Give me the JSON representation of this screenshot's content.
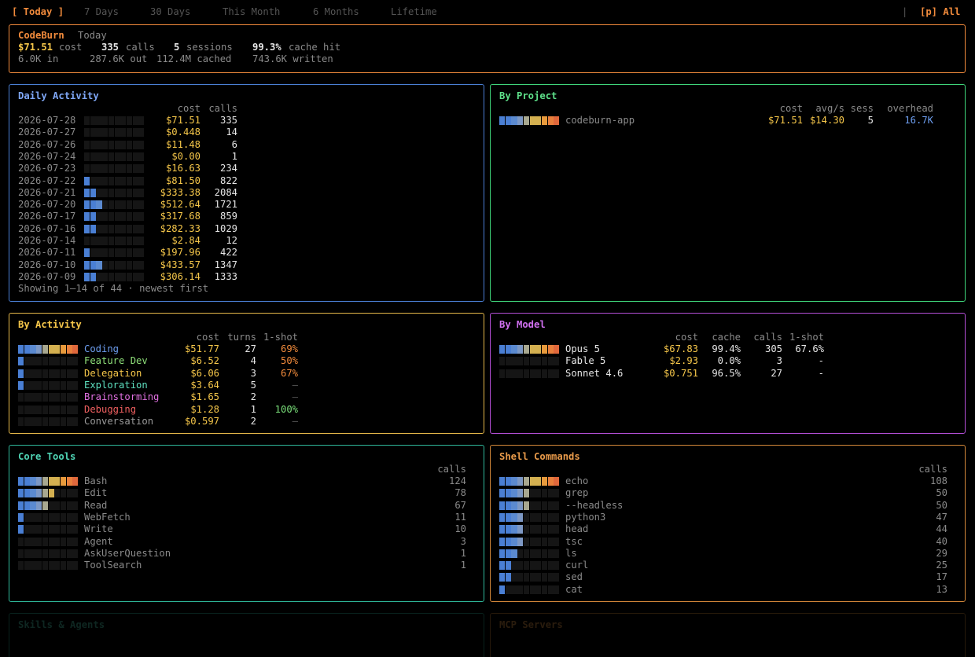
{
  "tabs": [
    {
      "label": "[ Today ]",
      "active": true
    },
    {
      "label": "7 Days"
    },
    {
      "label": "30 Days"
    },
    {
      "label": "This Month"
    },
    {
      "label": "6 Months"
    },
    {
      "label": "Lifetime"
    }
  ],
  "tabs_sep": "|",
  "all_label": "[p] All",
  "summary": {
    "app": "CodeBurn",
    "period": "Today",
    "cost": "$71.51",
    "cost_label": "cost",
    "calls": "335",
    "calls_label": "calls",
    "sessions": "5",
    "sessions_label": "sessions",
    "cache_hit": "99.3%",
    "cache_hit_label": "cache hit",
    "tokens_in": "6.0K in",
    "tokens_out": "287.6K out",
    "tokens_cached": "112.4M cached",
    "tokens_written": "743.6K written"
  },
  "daily": {
    "title": "Daily Activity",
    "headers": {
      "cost": "cost",
      "calls": "calls"
    },
    "rows": [
      {
        "date": "2026-07-28",
        "cost": "$71.51",
        "calls": "335",
        "level": 0.0
      },
      {
        "date": "2026-07-27",
        "cost": "$0.448",
        "calls": "14",
        "level": 0.0
      },
      {
        "date": "2026-07-26",
        "cost": "$11.48",
        "calls": "6",
        "level": 0.0
      },
      {
        "date": "2026-07-24",
        "cost": "$0.00",
        "calls": "1",
        "level": 0.0
      },
      {
        "date": "2026-07-23",
        "cost": "$16.63",
        "calls": "234",
        "level": 0.0
      },
      {
        "date": "2026-07-22",
        "cost": "$81.50",
        "calls": "822",
        "level": 0.1
      },
      {
        "date": "2026-07-21",
        "cost": "$333.38",
        "calls": "2084",
        "level": 0.2
      },
      {
        "date": "2026-07-20",
        "cost": "$512.64",
        "calls": "1721",
        "level": 0.3
      },
      {
        "date": "2026-07-17",
        "cost": "$317.68",
        "calls": "859",
        "level": 0.2
      },
      {
        "date": "2026-07-16",
        "cost": "$282.33",
        "calls": "1029",
        "level": 0.2
      },
      {
        "date": "2026-07-14",
        "cost": "$2.84",
        "calls": "12",
        "level": 0.0
      },
      {
        "date": "2026-07-11",
        "cost": "$197.96",
        "calls": "422",
        "level": 0.1
      },
      {
        "date": "2026-07-10",
        "cost": "$433.57",
        "calls": "1347",
        "level": 0.3
      },
      {
        "date": "2026-07-09",
        "cost": "$306.14",
        "calls": "1333",
        "level": 0.2
      }
    ],
    "footer": "Showing 1–14 of 44 · newest first"
  },
  "project": {
    "title": "By Project",
    "headers": {
      "cost": "cost",
      "avg": "avg/s",
      "sess": "sess",
      "overhead": "overhead"
    },
    "rows": [
      {
        "name": "codeburn-app",
        "cost": "$71.51",
        "avg": "$14.30",
        "sess": "5",
        "overhead": "16.7K",
        "level": 1.0
      }
    ]
  },
  "activity": {
    "title": "By Activity",
    "headers": {
      "cost": "cost",
      "turns": "turns",
      "oneshot": "1-shot"
    },
    "rows": [
      {
        "name": "Coding",
        "color": "#6d9ef0",
        "cost": "$51.77",
        "turns": "27",
        "oneshot": "69%",
        "oneshot_color": "#f28b3c",
        "level": 1.0
      },
      {
        "name": "Feature Dev",
        "color": "#8fe07a",
        "cost": "$6.52",
        "turns": "4",
        "oneshot": "50%",
        "oneshot_color": "#f28b3c",
        "level": 0.1
      },
      {
        "name": "Delegation",
        "color": "#f6c74a",
        "cost": "$6.06",
        "turns": "3",
        "oneshot": "67%",
        "oneshot_color": "#f28b3c",
        "level": 0.1
      },
      {
        "name": "Exploration",
        "color": "#5ee0c0",
        "cost": "$3.64",
        "turns": "5",
        "oneshot": "—",
        "oneshot_color": "#555555",
        "level": 0.1
      },
      {
        "name": "Brainstorming",
        "color": "#e070e0",
        "cost": "$1.65",
        "turns": "2",
        "oneshot": "—",
        "oneshot_color": "#555555",
        "level": 0.0
      },
      {
        "name": "Debugging",
        "color": "#f06060",
        "cost": "$1.28",
        "turns": "1",
        "oneshot": "100%",
        "oneshot_color": "#7ae07a",
        "level": 0.0
      },
      {
        "name": "Conversation",
        "color": "#9a9a9a",
        "cost": "$0.597",
        "turns": "2",
        "oneshot": "—",
        "oneshot_color": "#555555",
        "level": 0.0
      }
    ]
  },
  "model": {
    "title": "By Model",
    "headers": {
      "cost": "cost",
      "cache": "cache",
      "calls": "calls",
      "oneshot": "1-shot"
    },
    "rows": [
      {
        "name": "Opus 5",
        "cost": "$67.83",
        "cache": "99.4%",
        "calls": "305",
        "oneshot": "67.6%",
        "level": 1.0
      },
      {
        "name": "Fable 5",
        "cost": "$2.93",
        "cache": "0.0%",
        "calls": "3",
        "oneshot": "-",
        "level": 0.0
      },
      {
        "name": "Sonnet 4.6",
        "cost": "$0.751",
        "cache": "96.5%",
        "calls": "27",
        "oneshot": "-",
        "level": 0.0
      }
    ]
  },
  "tools": {
    "title": "Core Tools",
    "header": "calls",
    "rows": [
      {
        "name": "Bash",
        "calls": "124",
        "level": 1.0
      },
      {
        "name": "Edit",
        "calls": "78",
        "level": 0.6
      },
      {
        "name": "Read",
        "calls": "67",
        "level": 0.5
      },
      {
        "name": "WebFetch",
        "calls": "11",
        "level": 0.1
      },
      {
        "name": "Write",
        "calls": "10",
        "level": 0.1
      },
      {
        "name": "Agent",
        "calls": "3",
        "level": 0.0
      },
      {
        "name": "AskUserQuestion",
        "calls": "1",
        "level": 0.0
      },
      {
        "name": "ToolSearch",
        "calls": "1",
        "level": 0.0
      }
    ]
  },
  "shell": {
    "title": "Shell Commands",
    "header": "calls",
    "rows": [
      {
        "name": "echo",
        "calls": "108",
        "level": 1.0
      },
      {
        "name": "grep",
        "calls": "50",
        "level": 0.5
      },
      {
        "name": "--headless",
        "calls": "50",
        "level": 0.5
      },
      {
        "name": "python3",
        "calls": "47",
        "level": 0.4
      },
      {
        "name": "head",
        "calls": "44",
        "level": 0.4
      },
      {
        "name": "tsc",
        "calls": "40",
        "level": 0.4
      },
      {
        "name": "ls",
        "calls": "29",
        "level": 0.3
      },
      {
        "name": "curl",
        "calls": "25",
        "level": 0.2
      },
      {
        "name": "sed",
        "calls": "17",
        "level": 0.2
      },
      {
        "name": "cat",
        "calls": "13",
        "level": 0.1
      }
    ]
  },
  "skills": {
    "title": "Skills & Agents"
  },
  "mcp": {
    "title": "MCP Servers"
  },
  "colors": {
    "accent": "#f28b3c",
    "summary_border": "#f28b3c",
    "daily_border": "#4a7fd4",
    "project_border": "#3fd47a",
    "activity_border": "#e6b84a",
    "model_border": "#b54fd8",
    "tools_border": "#2fb89a",
    "shell_border": "#d4883a",
    "cost": "#f6c74a"
  }
}
